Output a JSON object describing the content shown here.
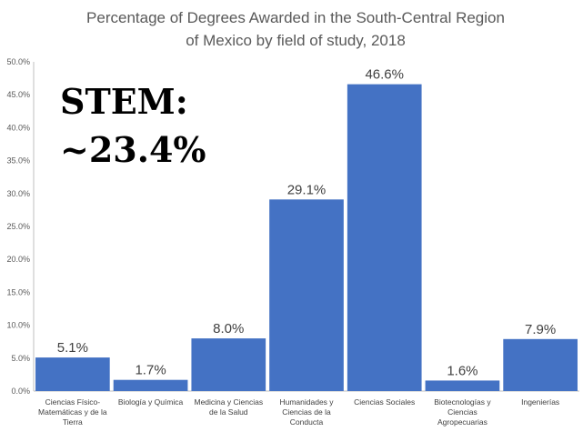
{
  "chart_data": {
    "type": "bar",
    "title": "Percentage of Degrees Awarded in the South-Central Region of Mexico by field of study, 2018",
    "title_lines": [
      "Percentage of Degrees Awarded in the South-Central Region",
      "of Mexico by field of study, 2018"
    ],
    "categories": [
      "Ciencias Físico-Matemáticas y de la Tierra",
      "Biología y Química",
      "Medicina y Ciencias de la Salud",
      "Humanidades y Ciencias de la Conducta",
      "Ciencias Sociales",
      "Biotecnologías y Ciencias Agropecuarias",
      "Ingenierías"
    ],
    "category_lines": [
      [
        "Ciencias Físico-",
        "Matemáticas y de la",
        "Tierra"
      ],
      [
        "Biología y Química"
      ],
      [
        "Medicina y Ciencias",
        "de la Salud"
      ],
      [
        "Humanidades y",
        "Ciencias de la",
        "Conducta"
      ],
      [
        "Ciencias Sociales"
      ],
      [
        "Biotecnologías y",
        "Ciencias",
        "Agropecuarias"
      ],
      [
        "Ingenierías"
      ]
    ],
    "values": [
      5.1,
      1.7,
      8.0,
      29.1,
      46.6,
      1.6,
      7.9
    ],
    "data_labels": [
      "5.1%",
      "1.7%",
      "8.0%",
      "29.1%",
      "46.6%",
      "1.6%",
      "7.9%"
    ],
    "ylim": [
      0,
      50
    ],
    "yticks": [
      0,
      5,
      10,
      15,
      20,
      25,
      30,
      35,
      40,
      45,
      50
    ],
    "ytick_labels": [
      "0.0%",
      "5.0%",
      "10.0%",
      "15.0%",
      "20.0%",
      "25.0%",
      "30.0%",
      "35.0%",
      "40.0%",
      "45.0%",
      "50.0%"
    ],
    "grid": false,
    "bar_color": "#4472c4",
    "annotation_lines": [
      "STEM:",
      "~23.4%"
    ]
  }
}
